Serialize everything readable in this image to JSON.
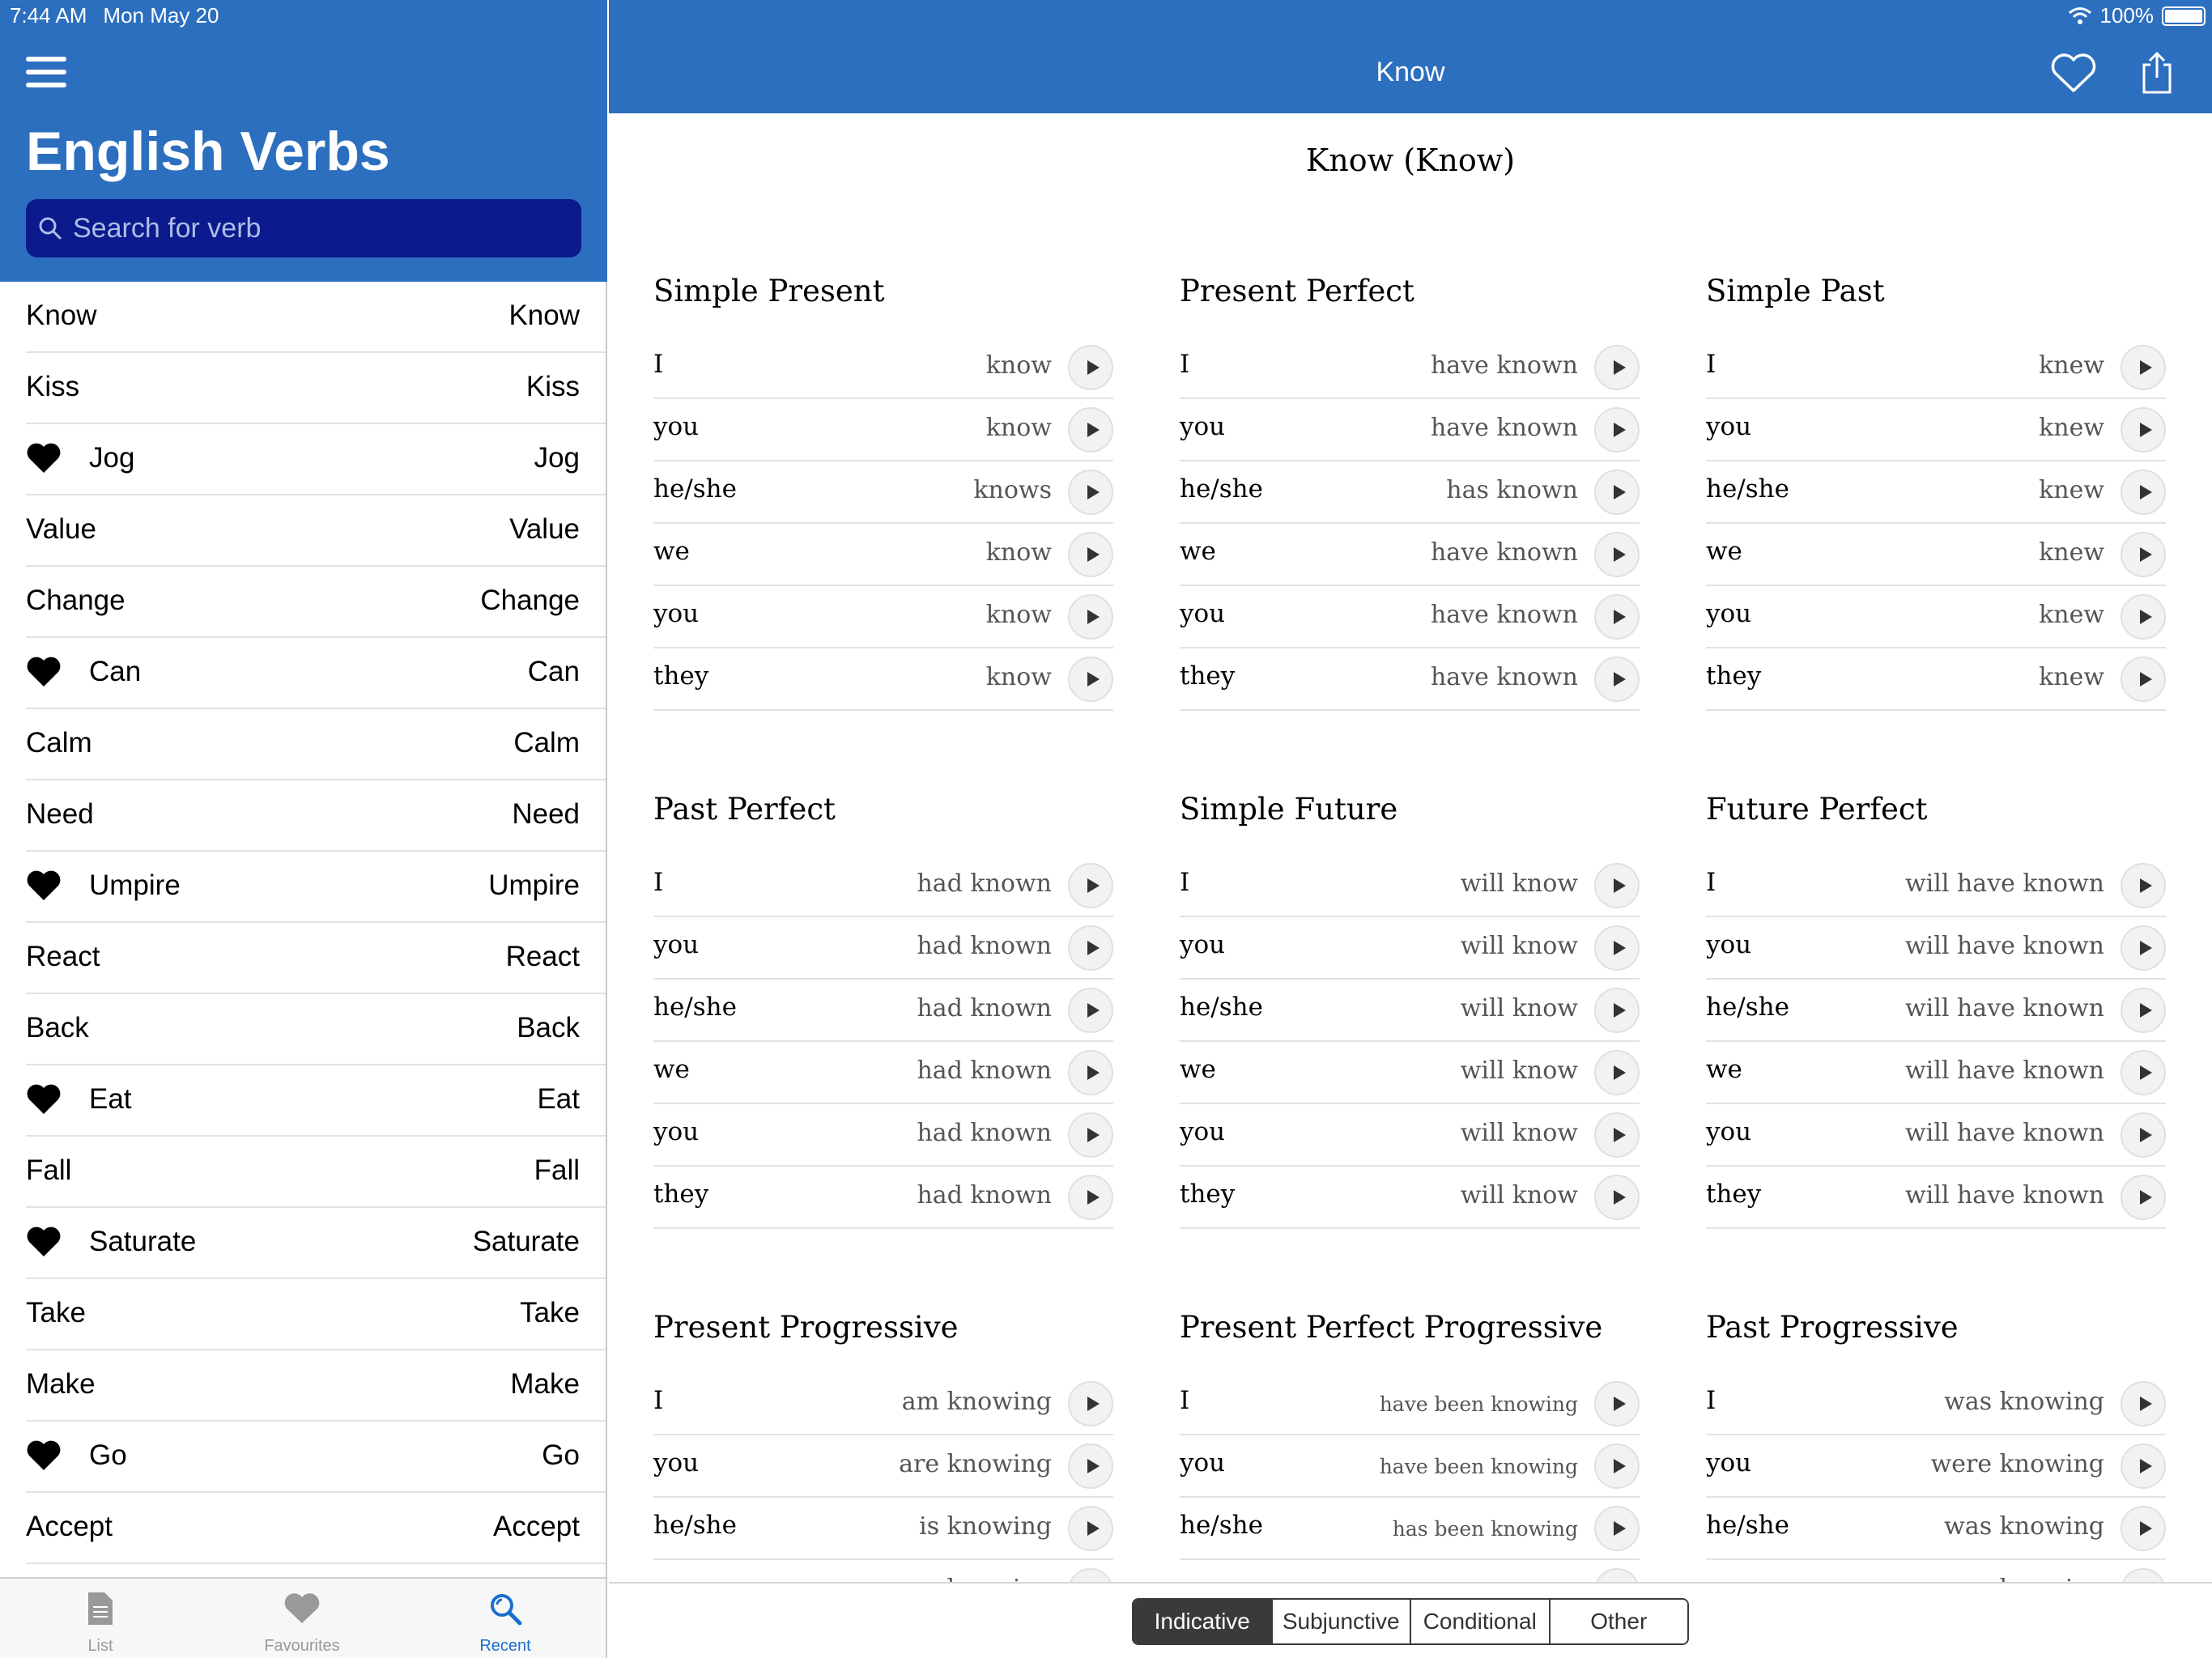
{
  "status": {
    "time": "7:44 AM",
    "date": "Mon May 20",
    "battery": "100%"
  },
  "sidebar": {
    "title": "English Verbs",
    "search_placeholder": "Search for verb",
    "verbs": [
      {
        "left": "Know",
        "right": "Know",
        "fav": false
      },
      {
        "left": "Kiss",
        "right": "Kiss",
        "fav": false
      },
      {
        "left": "Jog",
        "right": "Jog",
        "fav": true
      },
      {
        "left": "Value",
        "right": "Value",
        "fav": false
      },
      {
        "left": "Change",
        "right": "Change",
        "fav": false
      },
      {
        "left": "Can",
        "right": "Can",
        "fav": true
      },
      {
        "left": "Calm",
        "right": "Calm",
        "fav": false
      },
      {
        "left": "Need",
        "right": "Need",
        "fav": false
      },
      {
        "left": "Umpire",
        "right": "Umpire",
        "fav": true
      },
      {
        "left": "React",
        "right": "React",
        "fav": false
      },
      {
        "left": "Back",
        "right": "Back",
        "fav": false
      },
      {
        "left": "Eat",
        "right": "Eat",
        "fav": true
      },
      {
        "left": "Fall",
        "right": "Fall",
        "fav": false
      },
      {
        "left": "Saturate",
        "right": "Saturate",
        "fav": true
      },
      {
        "left": "Take",
        "right": "Take",
        "fav": false
      },
      {
        "left": "Make",
        "right": "Make",
        "fav": false
      },
      {
        "left": "Go",
        "right": "Go",
        "fav": true
      },
      {
        "left": "Accept",
        "right": "Accept",
        "fav": false
      }
    ],
    "tabs": [
      {
        "label": "List",
        "icon": "document-icon",
        "active": false
      },
      {
        "label": "Favourites",
        "icon": "heart-icon",
        "active": false
      },
      {
        "label": "Recent",
        "icon": "search-icon",
        "active": true
      }
    ]
  },
  "main": {
    "nav_title": "Know",
    "heading": "Know (Know)",
    "tenses": [
      {
        "title": "Simple Present",
        "rows": [
          [
            "I",
            "know"
          ],
          [
            "you",
            "know"
          ],
          [
            "he/she",
            "knows"
          ],
          [
            "we",
            "know"
          ],
          [
            "you",
            "know"
          ],
          [
            "they",
            "know"
          ]
        ]
      },
      {
        "title": "Present Perfect",
        "rows": [
          [
            "I",
            "have known"
          ],
          [
            "you",
            "have known"
          ],
          [
            "he/she",
            "has known"
          ],
          [
            "we",
            "have known"
          ],
          [
            "you",
            "have known"
          ],
          [
            "they",
            "have known"
          ]
        ]
      },
      {
        "title": "Simple Past",
        "rows": [
          [
            "I",
            "knew"
          ],
          [
            "you",
            "knew"
          ],
          [
            "he/she",
            "knew"
          ],
          [
            "we",
            "knew"
          ],
          [
            "you",
            "knew"
          ],
          [
            "they",
            "knew"
          ]
        ]
      },
      {
        "title": "Past Perfect",
        "rows": [
          [
            "I",
            "had known"
          ],
          [
            "you",
            "had known"
          ],
          [
            "he/she",
            "had known"
          ],
          [
            "we",
            "had known"
          ],
          [
            "you",
            "had known"
          ],
          [
            "they",
            "had known"
          ]
        ]
      },
      {
        "title": "Simple Future",
        "rows": [
          [
            "I",
            "will know"
          ],
          [
            "you",
            "will know"
          ],
          [
            "he/she",
            "will know"
          ],
          [
            "we",
            "will know"
          ],
          [
            "you",
            "will know"
          ],
          [
            "they",
            "will know"
          ]
        ]
      },
      {
        "title": "Future Perfect",
        "rows": [
          [
            "I",
            "will have known"
          ],
          [
            "you",
            "will have known"
          ],
          [
            "he/she",
            "will have known"
          ],
          [
            "we",
            "will have known"
          ],
          [
            "you",
            "will have known"
          ],
          [
            "they",
            "will have known"
          ]
        ]
      },
      {
        "title": "Present Progressive",
        "rows": [
          [
            "I",
            "am knowing"
          ],
          [
            "you",
            "are knowing"
          ],
          [
            "he/she",
            "is knowing"
          ],
          [
            "we",
            "are knowing"
          ]
        ]
      },
      {
        "title": "Present Perfect Progressive",
        "small": true,
        "rows": [
          [
            "I",
            "have been knowing"
          ],
          [
            "you",
            "have been knowing"
          ],
          [
            "he/she",
            "has been knowing"
          ],
          [
            "we",
            "have been knowing"
          ]
        ]
      },
      {
        "title": "Past Progressive",
        "rows": [
          [
            "I",
            "was knowing"
          ],
          [
            "you",
            "were knowing"
          ],
          [
            "he/she",
            "was knowing"
          ],
          [
            "we",
            "were knowing"
          ]
        ]
      }
    ],
    "segments": [
      {
        "label": "Indicative",
        "active": true
      },
      {
        "label": "Subjunctive",
        "active": false
      },
      {
        "label": "Conditional",
        "active": false
      },
      {
        "label": "Other",
        "active": false
      }
    ]
  },
  "colors": {
    "brand": "#2c6fbf",
    "search_bg": "#0b1a8c",
    "tab_active": "#1a6fd0"
  }
}
